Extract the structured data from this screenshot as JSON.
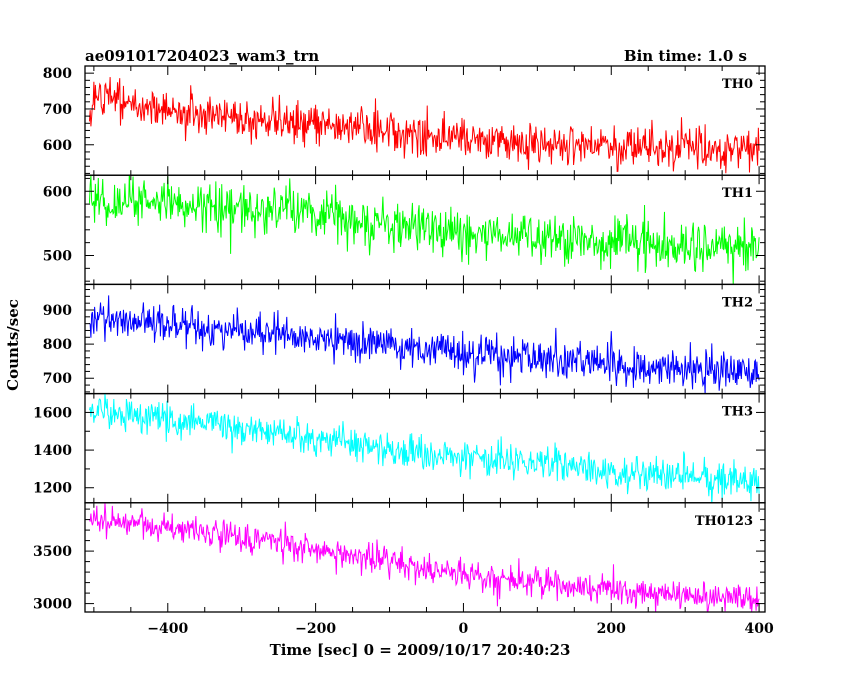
{
  "header": {
    "left_title": "ae091017204023_wam3_trn",
    "right_title": "Bin time: 1.0 s"
  },
  "chart_data": {
    "type": "line",
    "x_label": "Time [sec] 0 = 2009/10/17 20:40:23",
    "y_label": "Counts/sec",
    "x_range": [
      -512,
      408
    ],
    "x_ticks": [
      -400,
      -200,
      0,
      200,
      400
    ],
    "x_tick_labels": [
      "−400",
      "−200",
      "0",
      "200",
      "400"
    ],
    "bin_time_s": 1.0,
    "panels": [
      {
        "name": "TH0",
        "color": "#ff0000",
        "ylim": [
          515,
          820
        ],
        "y_ticks": [
          600,
          700,
          800
        ],
        "trend": [
          [
            -506,
            650
          ],
          [
            -500,
            740
          ],
          [
            -450,
            710
          ],
          [
            -350,
            680
          ],
          [
            -200,
            655
          ],
          [
            0,
            615
          ],
          [
            200,
            595
          ],
          [
            300,
            590
          ],
          [
            400,
            580
          ]
        ],
        "noise_sd": 28
      },
      {
        "name": "TH1",
        "color": "#00ff00",
        "ylim": [
          455,
          625
        ],
        "y_ticks": [
          500,
          600
        ],
        "trend": [
          [
            -506,
            590
          ],
          [
            -400,
            580
          ],
          [
            -300,
            570
          ],
          [
            -200,
            565
          ],
          [
            0,
            535
          ],
          [
            200,
            520
          ],
          [
            300,
            515
          ],
          [
            400,
            510
          ]
        ],
        "noise_sd": 19
      },
      {
        "name": "TH2",
        "color": "#0000ff",
        "ylim": [
          655,
          975
        ],
        "y_ticks": [
          700,
          800,
          900
        ],
        "trend": [
          [
            -506,
            880
          ],
          [
            -400,
            860
          ],
          [
            -300,
            840
          ],
          [
            -200,
            815
          ],
          [
            0,
            775
          ],
          [
            200,
            740
          ],
          [
            300,
            728
          ],
          [
            400,
            720
          ]
        ],
        "noise_sd": 28
      },
      {
        "name": "TH3",
        "color": "#00ffff",
        "ylim": [
          1120,
          1700
        ],
        "y_ticks": [
          1200,
          1400,
          1600
        ],
        "trend": [
          [
            -506,
            1590
          ],
          [
            -400,
            1560
          ],
          [
            -300,
            1515
          ],
          [
            -200,
            1460
          ],
          [
            0,
            1360
          ],
          [
            200,
            1285
          ],
          [
            300,
            1265
          ],
          [
            400,
            1240
          ]
        ],
        "noise_sd": 45
      },
      {
        "name": "TH0123",
        "color": "#ff00ff",
        "ylim": [
          2920,
          3960
        ],
        "y_ticks": [
          3000,
          3500
        ],
        "trend": [
          [
            -506,
            3810
          ],
          [
            -400,
            3720
          ],
          [
            -300,
            3620
          ],
          [
            -200,
            3530
          ],
          [
            0,
            3270
          ],
          [
            200,
            3130
          ],
          [
            300,
            3080
          ],
          [
            400,
            3050
          ]
        ],
        "noise_sd": 70
      }
    ]
  }
}
